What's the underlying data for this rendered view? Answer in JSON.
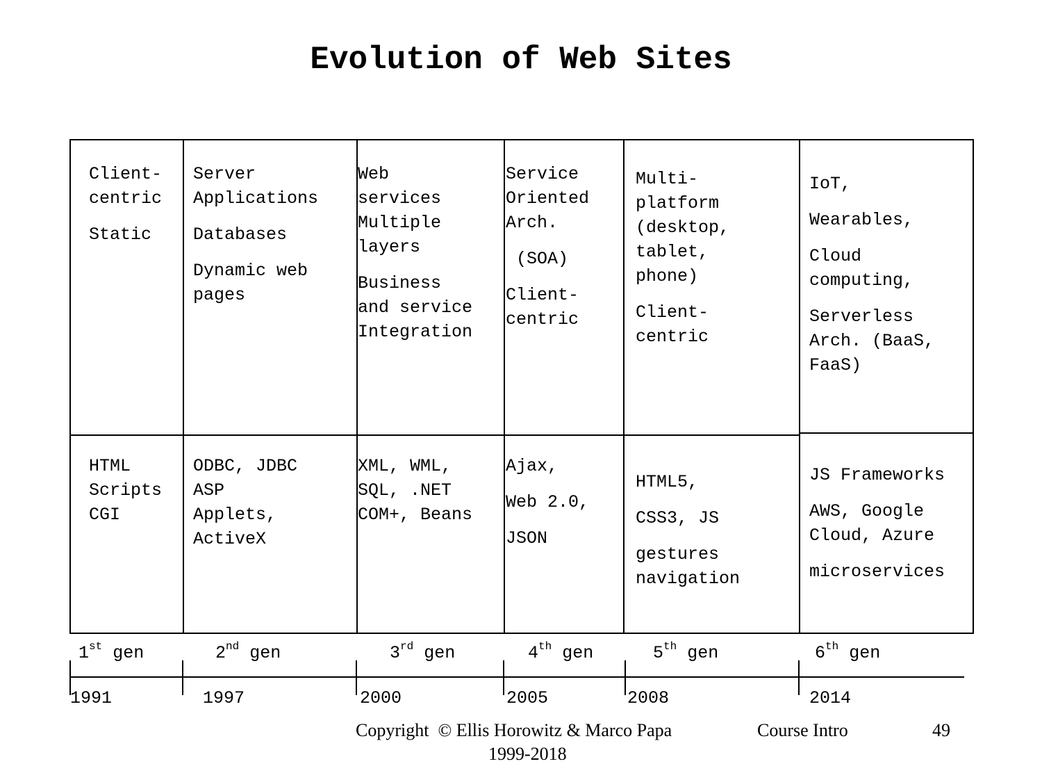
{
  "slide": {
    "title": "Evolution of Web Sites",
    "columns": [
      {
        "top": [
          "Client-\ncentric",
          "Static"
        ],
        "bottom": [
          "HTML\nScripts\nCGI"
        ],
        "gen_num": "1",
        "gen_sup": "st",
        "gen_label": "gen",
        "year": "1991"
      },
      {
        "top": [
          "Server\nApplications",
          "Databases",
          "Dynamic web\npages"
        ],
        "bottom": [
          "ODBC, JDBC\nASP\nApplets,\nActiveX"
        ],
        "gen_num": "2",
        "gen_sup": "nd",
        "gen_label": "gen",
        "year": "1997"
      },
      {
        "top": [
          "Web\nservices\nMultiple\nlayers",
          "Business\nand service\nIntegration"
        ],
        "bottom": [
          "XML, WML,\nSQL, .NET\nCOM+, Beans"
        ],
        "gen_num": "3",
        "gen_sup": "rd",
        "gen_label": "gen",
        "year": "2000"
      },
      {
        "top": [
          "Service\nOriented\nArch.",
          " (SOA)",
          "Client-\ncentric"
        ],
        "bottom": [
          "Ajax,",
          "Web 2.0,",
          "JSON"
        ],
        "gen_num": "4",
        "gen_sup": "th",
        "gen_label": "gen",
        "year": "2005"
      },
      {
        "top": [
          "Multi-\nplatform\n(desktop,\ntablet,\nphone)",
          "Client-\ncentric"
        ],
        "bottom": [
          "HTML5,",
          "CSS3, JS",
          "gestures\nnavigation"
        ],
        "gen_num": "5",
        "gen_sup": "th",
        "gen_label": "gen",
        "year": "2008"
      },
      {
        "top": [
          "IoT,",
          "Wearables,",
          "Cloud\ncomputing,",
          "Serverless\nArch. (BaaS,\nFaaS)"
        ],
        "bottom": [
          "JS Frameworks",
          "AWS, Google\nCloud, Azure",
          "microservices"
        ],
        "gen_num": "6",
        "gen_sup": "th",
        "gen_label": "gen",
        "year": "2014"
      }
    ],
    "footer": {
      "copyright": "Copyright  © Ellis Horowitz & Marco Papa",
      "years": "1999-2018",
      "course": "Course Intro",
      "page": "49"
    }
  }
}
